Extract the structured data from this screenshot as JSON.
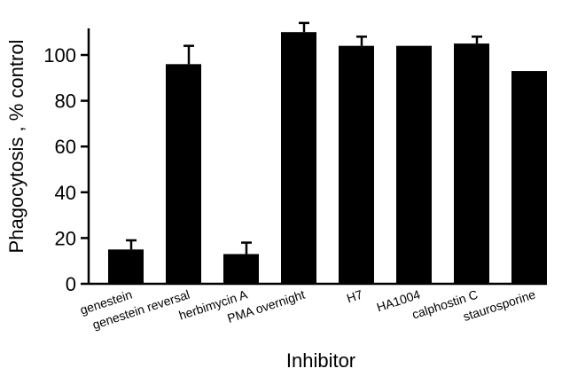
{
  "chart_data": {
    "type": "bar",
    "title": "",
    "xlabel": "Inhibitor",
    "ylabel": "Phagocytosis , % control",
    "ylim": [
      0,
      110
    ],
    "yticks": [
      0,
      20,
      40,
      60,
      80,
      100
    ],
    "grid": false,
    "legend": "none",
    "bar_color": "#000000",
    "categories": [
      "genestein",
      "genestein reversal",
      "herbimycin A",
      "PMA overnight",
      "H7",
      "HA1004",
      "calphostin C",
      "staurosporine"
    ],
    "values": [
      15,
      96,
      13,
      110,
      104,
      104,
      105,
      93
    ],
    "errors": [
      4,
      8,
      5,
      4,
      4,
      0,
      3,
      0
    ]
  }
}
